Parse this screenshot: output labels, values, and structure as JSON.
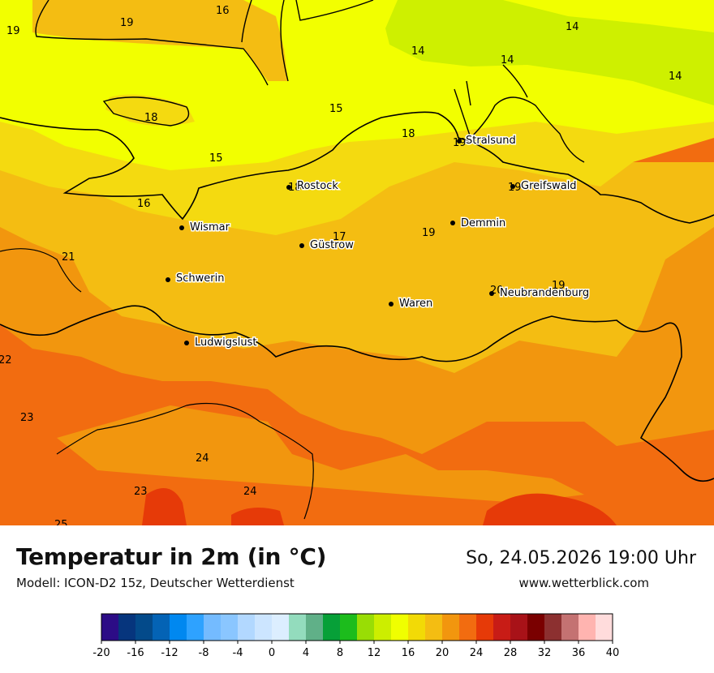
{
  "title": "Temperatur in 2m (in °C)",
  "model": "Modell: ICON-D2 15z, Deutscher Wetterdienst",
  "datetime": "So, 24.05.2026 19:00 Uhr",
  "website": "www.wetterblick.com",
  "cities": [
    {
      "name": "Stralsund",
      "value": "19"
    },
    {
      "name": "Rostock",
      "value": "18"
    },
    {
      "name": "Greifswald",
      "value": "19"
    },
    {
      "name": "Wismar",
      "value": ""
    },
    {
      "name": "Demmin",
      "value": ""
    },
    {
      "name": "Güstrow",
      "value": ""
    },
    {
      "name": "Schwerin",
      "value": ""
    },
    {
      "name": "Waren",
      "value": ""
    },
    {
      "name": "Neubrandenburg",
      "value": "20"
    },
    {
      "name": "Ludwigslust",
      "value": ""
    }
  ],
  "grid_values": [
    "19",
    "16",
    "19",
    "14",
    "14",
    "14",
    "14",
    "18",
    "15",
    "18",
    "15",
    "16",
    "17",
    "19",
    "19",
    "21",
    "22",
    "23",
    "24",
    "23",
    "24",
    "25"
  ],
  "scale": {
    "ticks": [
      "-20",
      "-16",
      "-12",
      "-8",
      "-4",
      "0",
      "4",
      "8",
      "12",
      "16",
      "20",
      "24",
      "28",
      "32",
      "36",
      "40"
    ],
    "colors": [
      "#2c0c86",
      "#06357d",
      "#034a8a",
      "#0463b5",
      "#0088f0",
      "#2ea2ff",
      "#74bbff",
      "#8ac6ff",
      "#b2d8ff",
      "#cce5ff",
      "#dceeff",
      "#93dcbd",
      "#60b088",
      "#07a038",
      "#1cbc1c",
      "#99dd05",
      "#ccee00",
      "#f0ff00",
      "#f2da06",
      "#f4bd12",
      "#f2960e",
      "#f26c10",
      "#e63a08",
      "#c81c16",
      "#a81218",
      "#7a0000",
      "#8c3030",
      "#c47272",
      "#ffb4b0",
      "#ffdcdc"
    ]
  },
  "colors": {
    "t14": "#cef000",
    "t15_16": "#f2ff00",
    "t17_18": "#f4da10",
    "t19_20": "#f4bd12",
    "t21_22": "#f2960e",
    "t23_24": "#f26c10",
    "t25": "#e63a08"
  }
}
